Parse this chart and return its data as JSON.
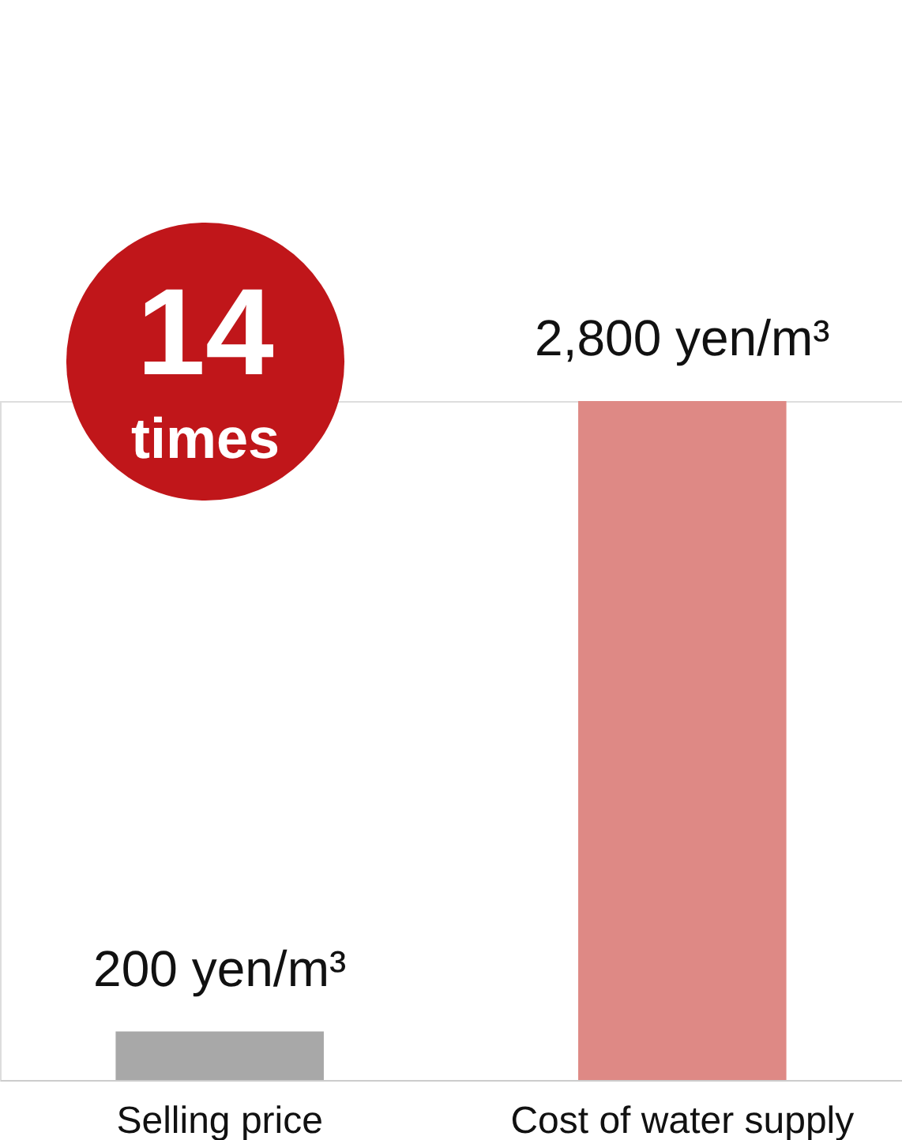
{
  "chart_data": {
    "type": "bar",
    "categories": [
      "Selling price",
      "Cost of water supply"
    ],
    "values": [
      200,
      2800
    ],
    "colors": [
      "#a8a8a8",
      "#de8985"
    ],
    "value_labels": [
      "200 yen/m³",
      "2,800 yen/m³"
    ],
    "annotations": [
      "14",
      "times"
    ]
  }
}
